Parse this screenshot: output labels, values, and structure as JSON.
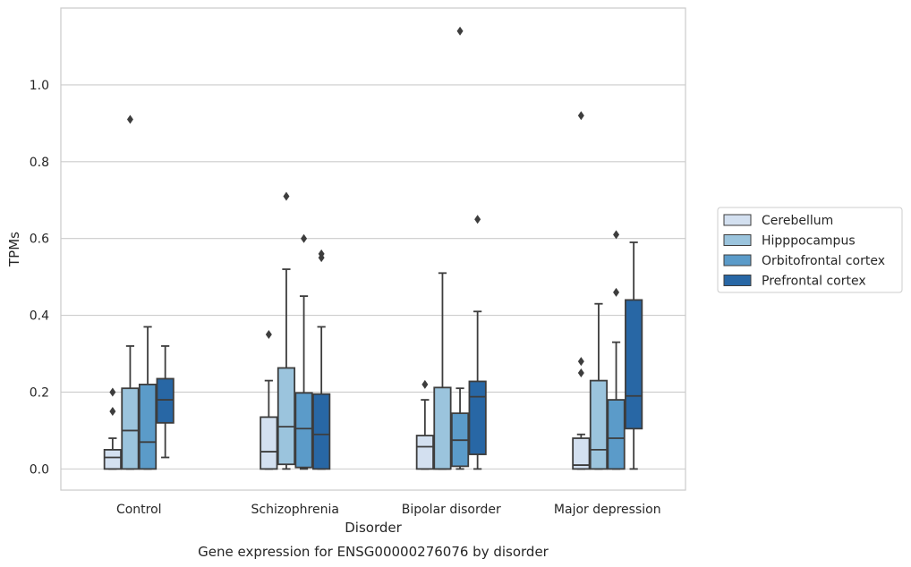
{
  "chart_data": {
    "type": "boxplot",
    "caption": "Gene expression for ENSG00000276076 by disorder",
    "xlabel": "Disorder",
    "ylabel": "TPMs",
    "ylim": [
      -0.055,
      1.2
    ],
    "yticks": [
      0.0,
      0.2,
      0.4,
      0.6,
      0.8,
      1.0
    ],
    "ytick_labels": [
      "0.0",
      "0.2",
      "0.4",
      "0.6",
      "0.8",
      "1.0"
    ],
    "grid": "horizontal",
    "legend_position": "outside-right",
    "categories": [
      "Control",
      "Schizophrenia",
      "Bipolar disorder",
      "Major depression"
    ],
    "series": [
      {
        "name": "Cerebellum",
        "color": "#d3e0f0",
        "boxes": [
          {
            "whisker_low": 0.0,
            "q1": 0.0,
            "median": 0.03,
            "q3": 0.05,
            "whisker_high": 0.08,
            "outliers": [
              0.15,
              0.2
            ]
          },
          {
            "whisker_low": 0.0,
            "q1": 0.0,
            "median": 0.045,
            "q3": 0.135,
            "whisker_high": 0.23,
            "outliers": [
              0.35
            ]
          },
          {
            "whisker_low": 0.0,
            "q1": 0.0,
            "median": 0.058,
            "q3": 0.087,
            "whisker_high": 0.18,
            "outliers": [
              0.22
            ]
          },
          {
            "whisker_low": 0.0,
            "q1": 0.0,
            "median": 0.01,
            "q3": 0.08,
            "whisker_high": 0.09,
            "outliers": [
              0.25,
              0.28,
              0.92
            ]
          }
        ]
      },
      {
        "name": "Hipppocampus",
        "color": "#9bc4dd",
        "boxes": [
          {
            "whisker_low": 0.0,
            "q1": 0.0,
            "median": 0.1,
            "q3": 0.21,
            "whisker_high": 0.32,
            "outliers": [
              0.91
            ]
          },
          {
            "whisker_low": 0.0,
            "q1": 0.012,
            "median": 0.11,
            "q3": 0.263,
            "whisker_high": 0.52,
            "outliers": [
              0.71
            ]
          },
          {
            "whisker_low": 0.0,
            "q1": 0.0,
            "median": 0.0,
            "q3": 0.212,
            "whisker_high": 0.51,
            "outliers": []
          },
          {
            "whisker_low": 0.0,
            "q1": 0.0,
            "median": 0.05,
            "q3": 0.23,
            "whisker_high": 0.43,
            "outliers": []
          }
        ]
      },
      {
        "name": "Orbitofrontal cortex",
        "color": "#5b9bc9",
        "boxes": [
          {
            "whisker_low": 0.0,
            "q1": 0.0,
            "median": 0.07,
            "q3": 0.22,
            "whisker_high": 0.37,
            "outliers": []
          },
          {
            "whisker_low": 0.0,
            "q1": 0.004,
            "median": 0.105,
            "q3": 0.198,
            "whisker_high": 0.45,
            "outliers": [
              0.6
            ]
          },
          {
            "whisker_low": 0.0,
            "q1": 0.007,
            "median": 0.075,
            "q3": 0.145,
            "whisker_high": 0.21,
            "outliers": [
              1.14
            ]
          },
          {
            "whisker_low": 0.0,
            "q1": 0.0,
            "median": 0.08,
            "q3": 0.18,
            "whisker_high": 0.33,
            "outliers": [
              0.46,
              0.61
            ]
          }
        ]
      },
      {
        "name": "Prefrontal cortex",
        "color": "#2867a5",
        "boxes": [
          {
            "whisker_low": 0.03,
            "q1": 0.12,
            "median": 0.18,
            "q3": 0.235,
            "whisker_high": 0.32,
            "outliers": []
          },
          {
            "whisker_low": 0.0,
            "q1": 0.0,
            "median": 0.09,
            "q3": 0.195,
            "whisker_high": 0.37,
            "outliers": [
              0.55,
              0.56
            ]
          },
          {
            "whisker_low": 0.0,
            "q1": 0.038,
            "median": 0.188,
            "q3": 0.228,
            "whisker_high": 0.41,
            "outliers": [
              0.65
            ]
          },
          {
            "whisker_low": 0.0,
            "q1": 0.105,
            "median": 0.19,
            "q3": 0.44,
            "whisker_high": 0.59,
            "outliers": []
          }
        ]
      }
    ]
  }
}
